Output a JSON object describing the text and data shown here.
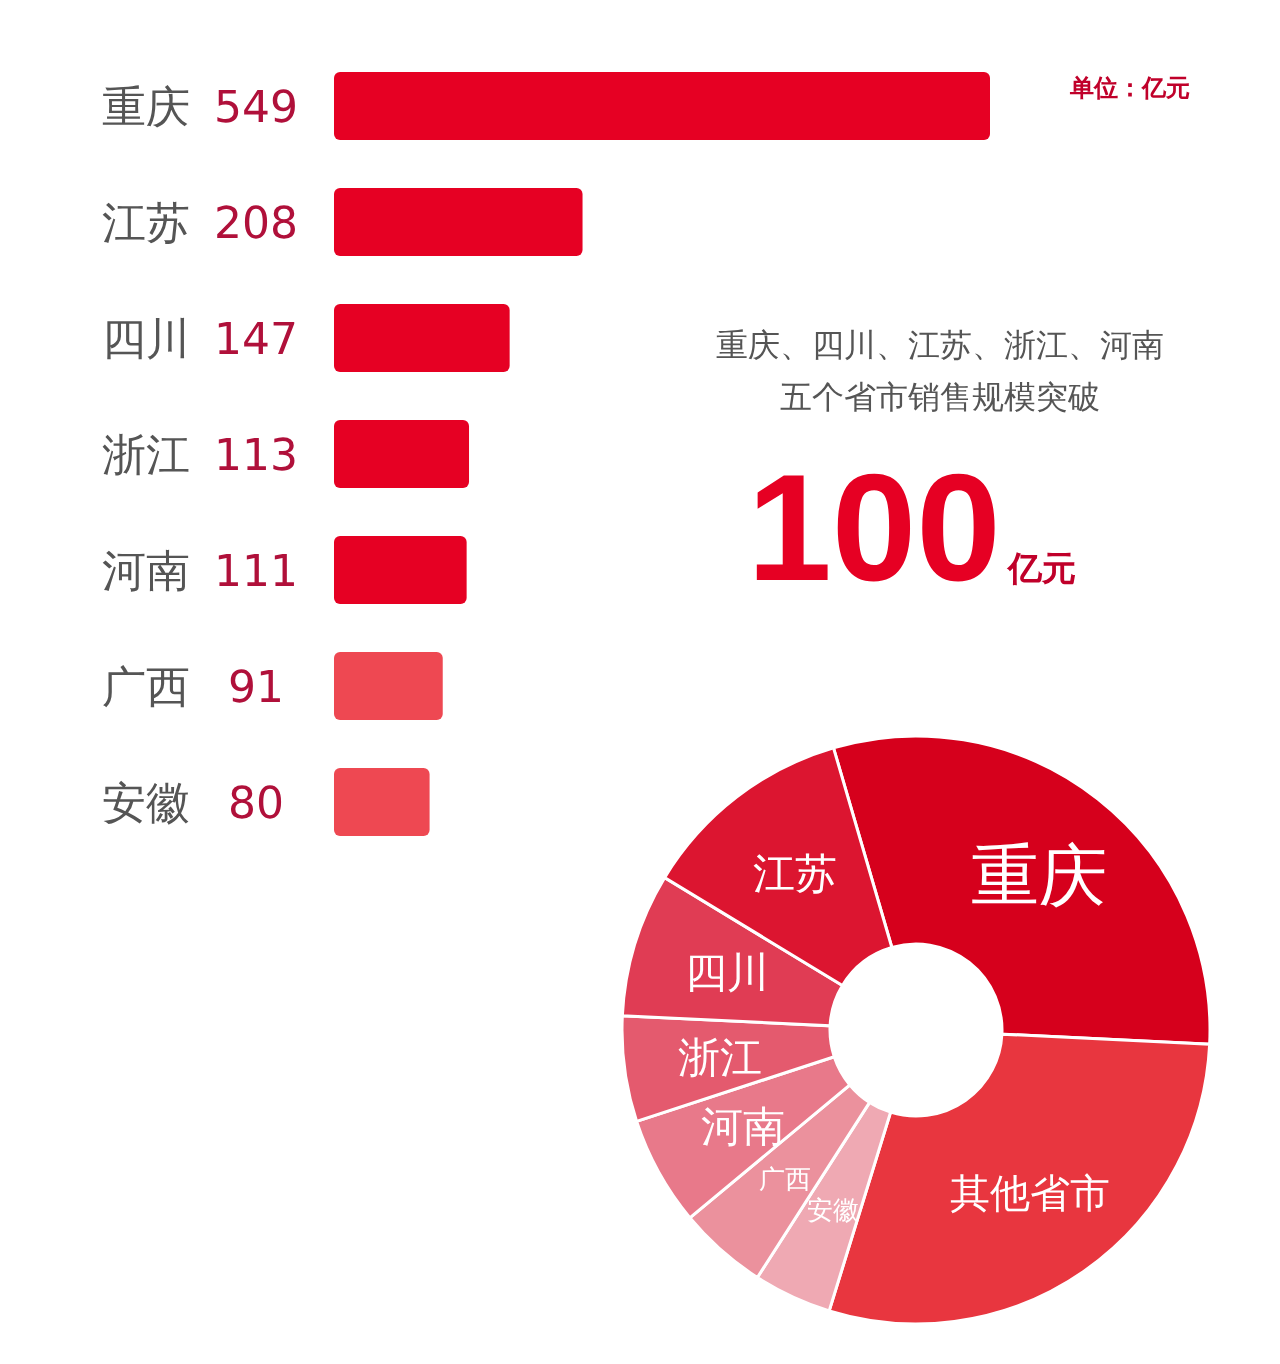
{
  "chart_data": [
    {
      "type": "bar",
      "orientation": "horizontal",
      "data_labels": true,
      "categories": [
        "重庆",
        "江苏",
        "四川",
        "浙江",
        "河南",
        "广西",
        "安徽"
      ],
      "values": [
        549,
        208,
        147,
        113,
        111,
        91,
        80
      ],
      "colors": [
        "#e60023",
        "#e60023",
        "#e60023",
        "#e60023",
        "#e60023",
        "#ee4852",
        "#ee4852"
      ],
      "annotations": [
        "单位：亿元",
        "重庆、四川、江苏、浙江、河南",
        "五个省市销售规模突破",
        "100",
        "亿元"
      ]
    },
    {
      "type": "donut",
      "categories": [
        "重庆",
        "其他省市",
        "安徽",
        "广西",
        "河南",
        "浙江",
        "四川",
        "江苏"
      ],
      "values": [
        30.3,
        29,
        4.3,
        4.9,
        6,
        5.8,
        7.9,
        11.8
      ],
      "colors": [
        "#d6001c",
        "#e8363f",
        "#efa9b3",
        "#eb919d",
        "#e8798a",
        "#e45a6e",
        "#e03c54",
        "#dc1530"
      ]
    }
  ]
}
